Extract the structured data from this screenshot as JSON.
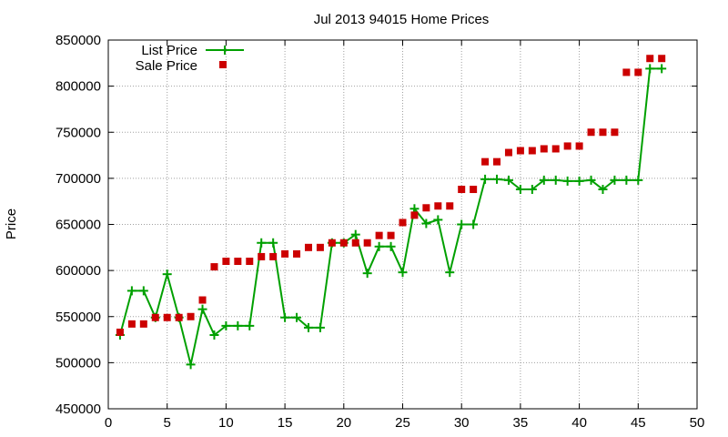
{
  "chart_data": {
    "type": "line",
    "title": "Jul 2013 94015 Home Prices",
    "xlabel": "",
    "ylabel": "Price",
    "xlim": [
      0,
      50
    ],
    "ylim": [
      450000,
      850000
    ],
    "xticks": [
      0,
      5,
      10,
      15,
      20,
      25,
      30,
      35,
      40,
      45,
      50
    ],
    "yticks": [
      450000,
      500000,
      550000,
      600000,
      650000,
      700000,
      750000,
      800000,
      850000
    ],
    "grid": true,
    "legend_position": "top-left",
    "series": [
      {
        "name": "List Price",
        "style": "line-with-plus-markers",
        "color": "#00a000",
        "points": [
          [
            1,
            530000
          ],
          [
            2,
            578000
          ],
          [
            3,
            578000
          ],
          [
            4,
            549000
          ],
          [
            5,
            596000
          ],
          [
            6,
            549000
          ],
          [
            7,
            498000
          ],
          [
            8,
            558000
          ],
          [
            9,
            530000
          ],
          [
            10,
            540000
          ],
          [
            11,
            540000
          ],
          [
            12,
            540000
          ],
          [
            13,
            630000
          ],
          [
            14,
            630000
          ],
          [
            15,
            549000
          ],
          [
            16,
            549000
          ],
          [
            17,
            538000
          ],
          [
            18,
            538000
          ],
          [
            19,
            630000
          ],
          [
            20,
            630000
          ],
          [
            21,
            639000
          ],
          [
            22,
            597000
          ],
          [
            23,
            626000
          ],
          [
            24,
            626000
          ],
          [
            25,
            598000
          ],
          [
            26,
            667000
          ],
          [
            27,
            651000
          ],
          [
            28,
            655000
          ],
          [
            29,
            598000
          ],
          [
            30,
            650000
          ],
          [
            31,
            650000
          ],
          [
            32,
            699000
          ],
          [
            33,
            699000
          ],
          [
            34,
            698000
          ],
          [
            35,
            688000
          ],
          [
            36,
            688000
          ],
          [
            37,
            698000
          ],
          [
            38,
            698000
          ],
          [
            39,
            697000
          ],
          [
            40,
            697000
          ],
          [
            41,
            698000
          ],
          [
            42,
            688000
          ],
          [
            43,
            698000
          ],
          [
            44,
            698000
          ],
          [
            45,
            698000
          ],
          [
            46,
            819000
          ],
          [
            47,
            819000
          ]
        ]
      },
      {
        "name": "Sale Price",
        "style": "square-markers",
        "color": "#cc0000",
        "points": [
          [
            1,
            533000
          ],
          [
            2,
            542000
          ],
          [
            3,
            542000
          ],
          [
            4,
            549000
          ],
          [
            5,
            549000
          ],
          [
            6,
            549000
          ],
          [
            7,
            550000
          ],
          [
            8,
            568000
          ],
          [
            9,
            604000
          ],
          [
            10,
            610000
          ],
          [
            11,
            610000
          ],
          [
            12,
            610000
          ],
          [
            13,
            615000
          ],
          [
            14,
            615000
          ],
          [
            15,
            618000
          ],
          [
            16,
            618000
          ],
          [
            17,
            625000
          ],
          [
            18,
            625000
          ],
          [
            19,
            630000
          ],
          [
            20,
            630000
          ],
          [
            21,
            630000
          ],
          [
            22,
            630000
          ],
          [
            23,
            638000
          ],
          [
            24,
            638000
          ],
          [
            25,
            652000
          ],
          [
            26,
            660000
          ],
          [
            27,
            668000
          ],
          [
            28,
            670000
          ],
          [
            29,
            670000
          ],
          [
            30,
            688000
          ],
          [
            31,
            688000
          ],
          [
            32,
            718000
          ],
          [
            33,
            718000
          ],
          [
            34,
            728000
          ],
          [
            35,
            730000
          ],
          [
            36,
            730000
          ],
          [
            37,
            732000
          ],
          [
            38,
            732000
          ],
          [
            39,
            735000
          ],
          [
            40,
            735000
          ],
          [
            41,
            750000
          ],
          [
            42,
            750000
          ],
          [
            43,
            750000
          ],
          [
            44,
            815000
          ],
          [
            45,
            815000
          ],
          [
            46,
            830000
          ],
          [
            47,
            830000
          ]
        ]
      }
    ]
  }
}
